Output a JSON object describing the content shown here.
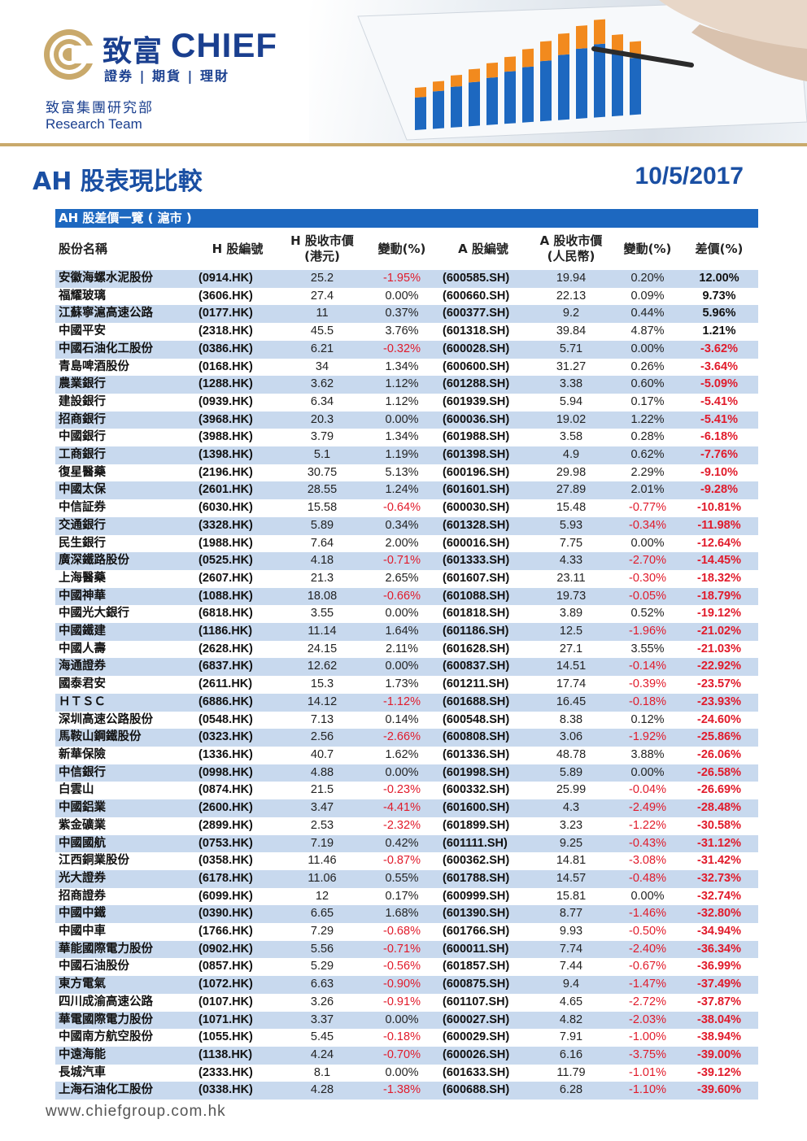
{
  "header": {
    "brand_cn": "致富",
    "brand_en": "CHIEF",
    "brand_sub": "證券 | 期貨 | 理財",
    "dept_cn": "致富集團研究部",
    "dept_en": "Research Team",
    "colors": {
      "brand_blue": "#1a3f8f",
      "gold": "#c9a96b",
      "title_blue": "#1a4fa3"
    }
  },
  "title": "AH 股表現比較",
  "date": "10/5/2017",
  "table": {
    "section_title": "AH 股差價一覽 ( 滬市 )",
    "headers": {
      "name": "股份名稱",
      "h_code": "H 股編號",
      "h_close_1": "H 股收市價",
      "h_close_2": "(港元)",
      "h_change": "變動(%)",
      "a_code": "A 股編號",
      "a_close_1": "A 股收市價",
      "a_close_2": "(人民幣)",
      "a_change": "變動(%)",
      "premium": "差價(%)"
    },
    "rows": [
      [
        "安徽海螺水泥股份",
        "(0914.HK)",
        "25.2",
        "-1.95%",
        "(600585.SH)",
        "19.94",
        "0.20%",
        "12.00%"
      ],
      [
        "福耀玻璃",
        "(3606.HK)",
        "27.4",
        "0.00%",
        "(600660.SH)",
        "22.13",
        "0.09%",
        "9.73%"
      ],
      [
        "江蘇寧滬高速公路",
        "(0177.HK)",
        "11",
        "0.37%",
        "(600377.SH)",
        "9.2",
        "0.44%",
        "5.96%"
      ],
      [
        "中國平安",
        "(2318.HK)",
        "45.5",
        "3.76%",
        "(601318.SH)",
        "39.84",
        "4.87%",
        "1.21%"
      ],
      [
        "中國石油化工股份",
        "(0386.HK)",
        "6.21",
        "-0.32%",
        "(600028.SH)",
        "5.71",
        "0.00%",
        "-3.62%"
      ],
      [
        "青島啤酒股份",
        "(0168.HK)",
        "34",
        "1.34%",
        "(600600.SH)",
        "31.27",
        "0.26%",
        "-3.64%"
      ],
      [
        "農業銀行",
        "(1288.HK)",
        "3.62",
        "1.12%",
        "(601288.SH)",
        "3.38",
        "0.60%",
        "-5.09%"
      ],
      [
        "建設銀行",
        "(0939.HK)",
        "6.34",
        "1.12%",
        "(601939.SH)",
        "5.94",
        "0.17%",
        "-5.41%"
      ],
      [
        "招商銀行",
        "(3968.HK)",
        "20.3",
        "0.00%",
        "(600036.SH)",
        "19.02",
        "1.22%",
        "-5.41%"
      ],
      [
        "中國銀行",
        "(3988.HK)",
        "3.79",
        "1.34%",
        "(601988.SH)",
        "3.58",
        "0.28%",
        "-6.18%"
      ],
      [
        "工商銀行",
        "(1398.HK)",
        "5.1",
        "1.19%",
        "(601398.SH)",
        "4.9",
        "0.62%",
        "-7.76%"
      ],
      [
        "復星醫藥",
        "(2196.HK)",
        "30.75",
        "5.13%",
        "(600196.SH)",
        "29.98",
        "2.29%",
        "-9.10%"
      ],
      [
        "中國太保",
        "(2601.HK)",
        "28.55",
        "1.24%",
        "(601601.SH)",
        "27.89",
        "2.01%",
        "-9.28%"
      ],
      [
        "中信証券",
        "(6030.HK)",
        "15.58",
        "-0.64%",
        "(600030.SH)",
        "15.48",
        "-0.77%",
        "-10.81%"
      ],
      [
        "交通銀行",
        "(3328.HK)",
        "5.89",
        "0.34%",
        "(601328.SH)",
        "5.93",
        "-0.34%",
        "-11.98%"
      ],
      [
        "民生銀行",
        "(1988.HK)",
        "7.64",
        "2.00%",
        "(600016.SH)",
        "7.75",
        "0.00%",
        "-12.64%"
      ],
      [
        "廣深鐵路股份",
        "(0525.HK)",
        "4.18",
        "-0.71%",
        "(601333.SH)",
        "4.33",
        "-2.70%",
        "-14.45%"
      ],
      [
        "上海醫藥",
        "(2607.HK)",
        "21.3",
        "2.65%",
        "(601607.SH)",
        "23.11",
        "-0.30%",
        "-18.32%"
      ],
      [
        "中國神華",
        "(1088.HK)",
        "18.08",
        "-0.66%",
        "(601088.SH)",
        "19.73",
        "-0.05%",
        "-18.79%"
      ],
      [
        "中國光大銀行",
        "(6818.HK)",
        "3.55",
        "0.00%",
        "(601818.SH)",
        "3.89",
        "0.52%",
        "-19.12%"
      ],
      [
        "中國鐵建",
        "(1186.HK)",
        "11.14",
        "1.64%",
        "(601186.SH)",
        "12.5",
        "-1.96%",
        "-21.02%"
      ],
      [
        "中國人壽",
        "(2628.HK)",
        "24.15",
        "2.11%",
        "(601628.SH)",
        "27.1",
        "3.55%",
        "-21.03%"
      ],
      [
        "海通證券",
        "(6837.HK)",
        "12.62",
        "0.00%",
        "(600837.SH)",
        "14.51",
        "-0.14%",
        "-22.92%"
      ],
      [
        "國泰君安",
        "(2611.HK)",
        "15.3",
        "1.73%",
        "(601211.SH)",
        "17.74",
        "-0.39%",
        "-23.57%"
      ],
      [
        "ＨＴＳＣ",
        "(6886.HK)",
        "14.12",
        "-1.12%",
        "(601688.SH)",
        "16.45",
        "-0.18%",
        "-23.93%"
      ],
      [
        "深圳高速公路股份",
        "(0548.HK)",
        "7.13",
        "0.14%",
        "(600548.SH)",
        "8.38",
        "0.12%",
        "-24.60%"
      ],
      [
        "馬鞍山鋼鐵股份",
        "(0323.HK)",
        "2.56",
        "-2.66%",
        "(600808.SH)",
        "3.06",
        "-1.92%",
        "-25.86%"
      ],
      [
        "新華保險",
        "(1336.HK)",
        "40.7",
        "1.62%",
        "(601336.SH)",
        "48.78",
        "3.88%",
        "-26.06%"
      ],
      [
        "中信銀行",
        "(0998.HK)",
        "4.88",
        "0.00%",
        "(601998.SH)",
        "5.89",
        "0.00%",
        "-26.58%"
      ],
      [
        "白雲山",
        "(0874.HK)",
        "21.5",
        "-0.23%",
        "(600332.SH)",
        "25.99",
        "-0.04%",
        "-26.69%"
      ],
      [
        "中國鋁業",
        "(2600.HK)",
        "3.47",
        "-4.41%",
        "(601600.SH)",
        "4.3",
        "-2.49%",
        "-28.48%"
      ],
      [
        "紫金礦業",
        "(2899.HK)",
        "2.53",
        "-2.32%",
        "(601899.SH)",
        "3.23",
        "-1.22%",
        "-30.58%"
      ],
      [
        "中國國航",
        "(0753.HK)",
        "7.19",
        "0.42%",
        "(601111.SH)",
        "9.25",
        "-0.43%",
        "-31.12%"
      ],
      [
        "江西銅業股份",
        "(0358.HK)",
        "11.46",
        "-0.87%",
        "(600362.SH)",
        "14.81",
        "-3.08%",
        "-31.42%"
      ],
      [
        "光大證券",
        "(6178.HK)",
        "11.06",
        "0.55%",
        "(601788.SH)",
        "14.57",
        "-0.48%",
        "-32.73%"
      ],
      [
        "招商證券",
        "(6099.HK)",
        "12",
        "0.17%",
        "(600999.SH)",
        "15.81",
        "0.00%",
        "-32.74%"
      ],
      [
        "中國中鐵",
        "(0390.HK)",
        "6.65",
        "1.68%",
        "(601390.SH)",
        "8.77",
        "-1.46%",
        "-32.80%"
      ],
      [
        "中國中車",
        "(1766.HK)",
        "7.29",
        "-0.68%",
        "(601766.SH)",
        "9.93",
        "-0.50%",
        "-34.94%"
      ],
      [
        "華能國際電力股份",
        "(0902.HK)",
        "5.56",
        "-0.71%",
        "(600011.SH)",
        "7.74",
        "-2.40%",
        "-36.34%"
      ],
      [
        "中國石油股份",
        "(0857.HK)",
        "5.29",
        "-0.56%",
        "(601857.SH)",
        "7.44",
        "-0.67%",
        "-36.99%"
      ],
      [
        "東方電氣",
        "(1072.HK)",
        "6.63",
        "-0.90%",
        "(600875.SH)",
        "9.4",
        "-1.47%",
        "-37.49%"
      ],
      [
        "四川成渝高速公路",
        "(0107.HK)",
        "3.26",
        "-0.91%",
        "(601107.SH)",
        "4.65",
        "-2.72%",
        "-37.87%"
      ],
      [
        "華電國際電力股份",
        "(1071.HK)",
        "3.37",
        "0.00%",
        "(600027.SH)",
        "4.82",
        "-2.03%",
        "-38.04%"
      ],
      [
        "中國南方航空股份",
        "(1055.HK)",
        "5.45",
        "-0.18%",
        "(600029.SH)",
        "7.91",
        "-1.00%",
        "-38.94%"
      ],
      [
        "中遠海能",
        "(1138.HK)",
        "4.24",
        "-0.70%",
        "(600026.SH)",
        "6.16",
        "-3.75%",
        "-39.00%"
      ],
      [
        "長城汽車",
        "(2333.HK)",
        "8.1",
        "0.00%",
        "(601633.SH)",
        "11.79",
        "-1.01%",
        "-39.12%"
      ],
      [
        "上海石油化工股份",
        "(0338.HK)",
        "4.28",
        "-1.38%",
        "(600688.SH)",
        "6.28",
        "-1.10%",
        "-39.60%"
      ]
    ]
  },
  "footer": {
    "url": "www.chiefgroup.com.hk"
  }
}
